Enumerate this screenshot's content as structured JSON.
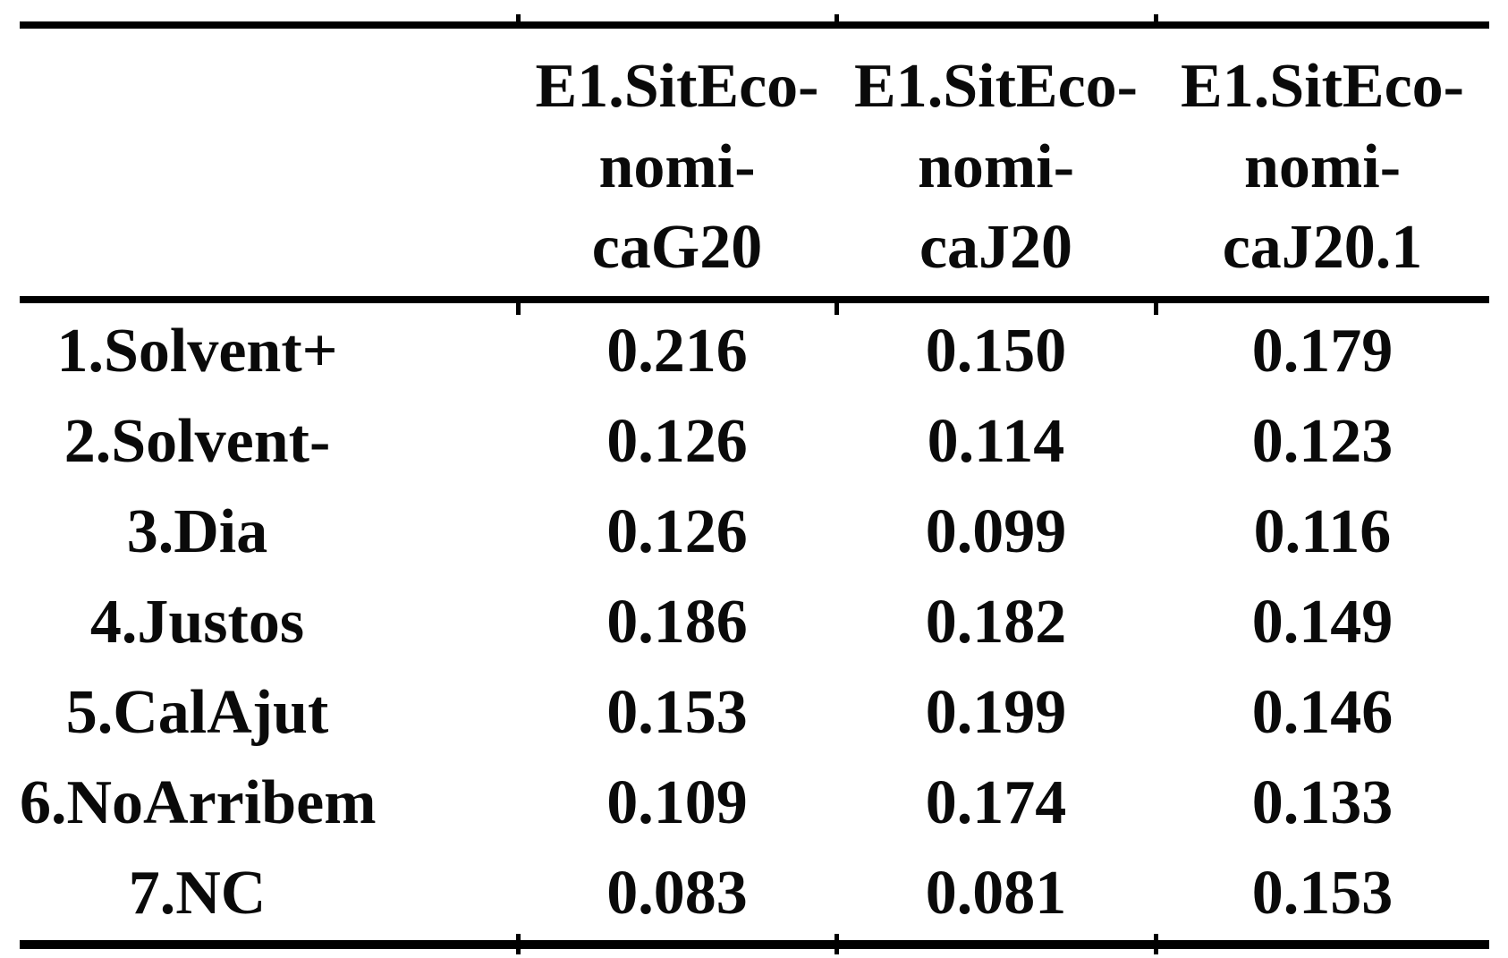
{
  "colors": {
    "text": "#0a0a0a",
    "rule": "#000000",
    "background": "#ffffff"
  },
  "table": {
    "columns": [
      {
        "lines": [
          "E1.SitEco-",
          "nomi-",
          "caG20"
        ]
      },
      {
        "lines": [
          "E1.SitEco-",
          "nomi-",
          "caJ20"
        ]
      },
      {
        "lines": [
          "E1.SitEco-",
          "nomi-",
          "caJ20.1"
        ]
      }
    ],
    "rows": [
      {
        "label": "1.Solvent+",
        "values": [
          "0.216",
          "0.150",
          "0.179"
        ]
      },
      {
        "label": "2.Solvent-",
        "values": [
          "0.126",
          "0.114",
          "0.123"
        ]
      },
      {
        "label": "3.Dia",
        "values": [
          "0.126",
          "0.099",
          "0.116"
        ]
      },
      {
        "label": "4.Justos",
        "values": [
          "0.186",
          "0.182",
          "0.149"
        ]
      },
      {
        "label": "5.CalAjut",
        "values": [
          "0.153",
          "0.199",
          "0.146"
        ]
      },
      {
        "label": "6.NoArribem",
        "values": [
          "0.109",
          "0.174",
          "0.133"
        ]
      },
      {
        "label": "7.NC",
        "values": [
          "0.083",
          "0.081",
          "0.153"
        ]
      }
    ]
  }
}
